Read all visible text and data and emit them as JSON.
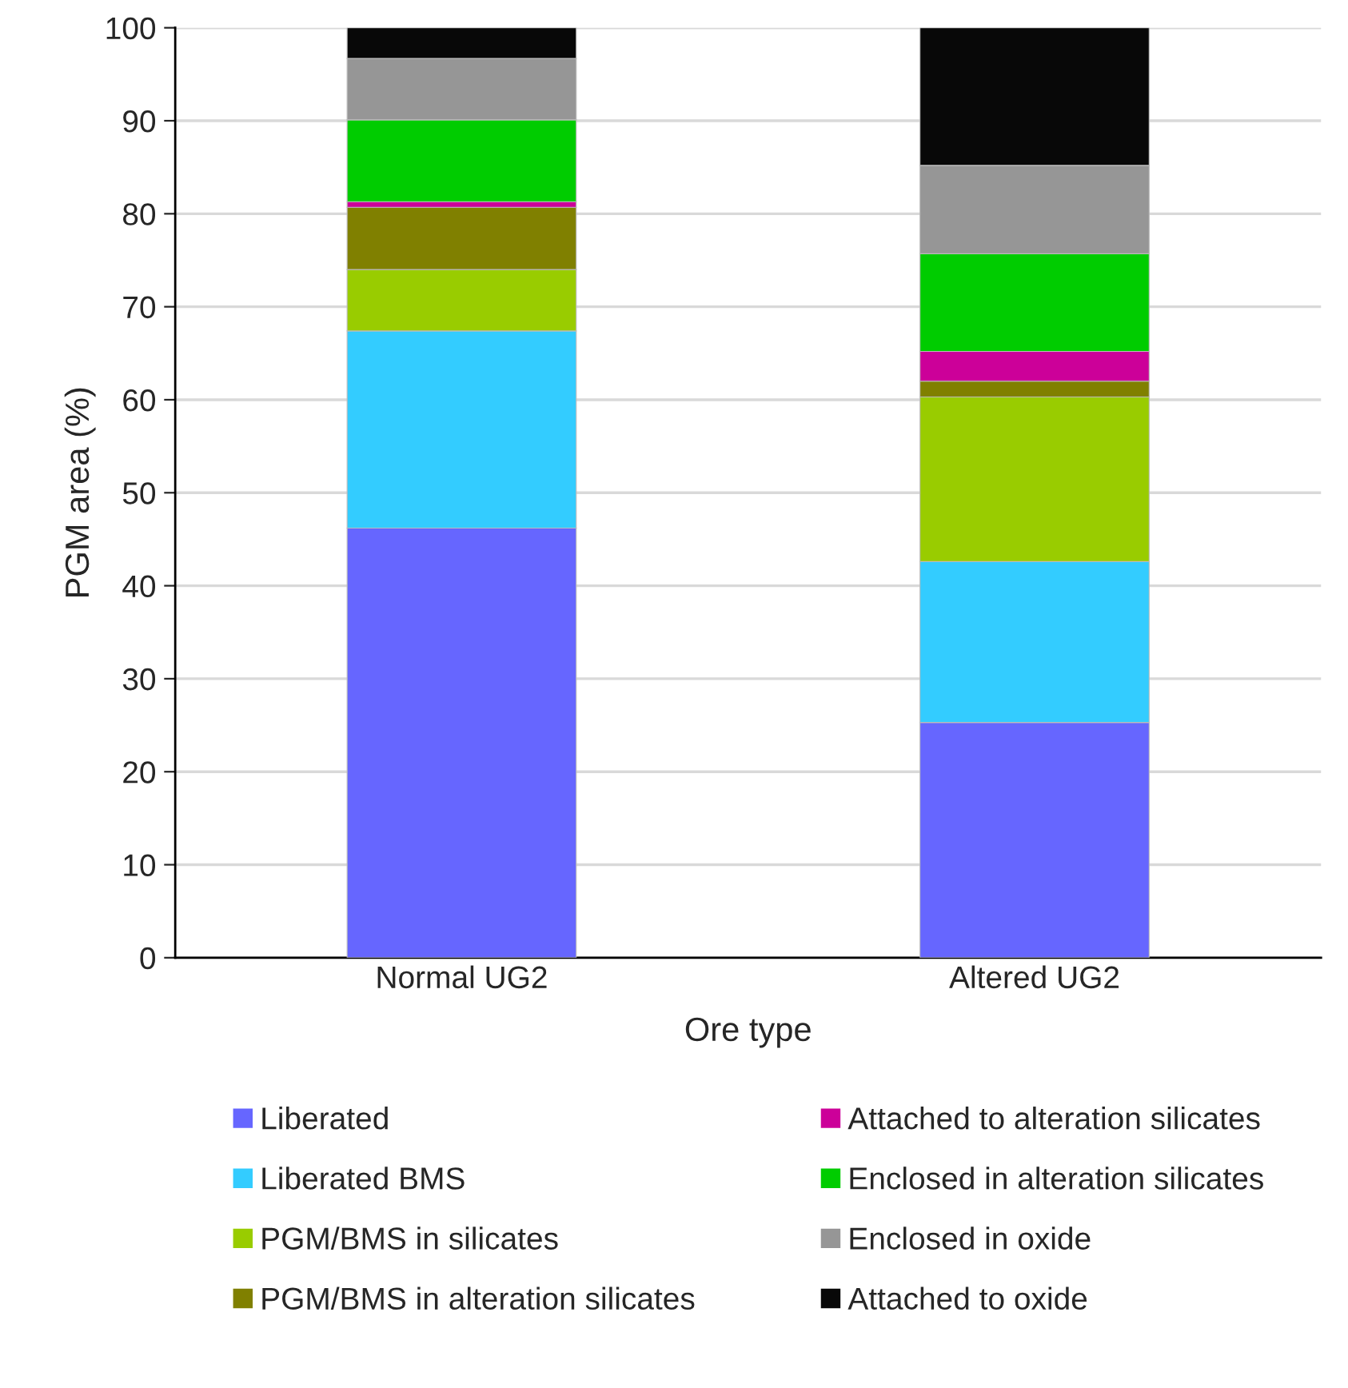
{
  "chart_data": {
    "type": "bar",
    "stacked": true,
    "xlabel": "Ore type",
    "ylabel": "PGM area (%)",
    "categories": [
      "Normal UG2",
      "Altered UG2"
    ],
    "ylim": [
      0,
      100
    ],
    "yticks": [
      0,
      10,
      20,
      30,
      40,
      50,
      60,
      70,
      80,
      90,
      100
    ],
    "grid": "y",
    "legend": "bottom",
    "series": [
      {
        "name": "Liberated",
        "color": "#6666ff",
        "values": [
          46.2,
          25.3
        ]
      },
      {
        "name": "Liberated BMS",
        "color": "#33ccff",
        "values": [
          21.2,
          17.3
        ]
      },
      {
        "name": "PGM/BMS in silicates",
        "color": "#99cc00",
        "values": [
          6.6,
          17.7
        ]
      },
      {
        "name": "PGM/BMS in alteration silicates",
        "color": "#808000",
        "values": [
          6.7,
          1.7
        ]
      },
      {
        "name": "Attached to alteration silicates",
        "color": "#cc0099",
        "values": [
          0.6,
          3.2
        ]
      },
      {
        "name": "Enclosed in alteration silicates",
        "color": "#00cc00",
        "values": [
          8.8,
          10.5
        ]
      },
      {
        "name": "Enclosed in oxide",
        "color": "#969696",
        "values": [
          6.6,
          9.5
        ]
      },
      {
        "name": "Attached to oxide",
        "color": "#080808",
        "values": [
          3.3,
          14.8
        ]
      }
    ]
  }
}
